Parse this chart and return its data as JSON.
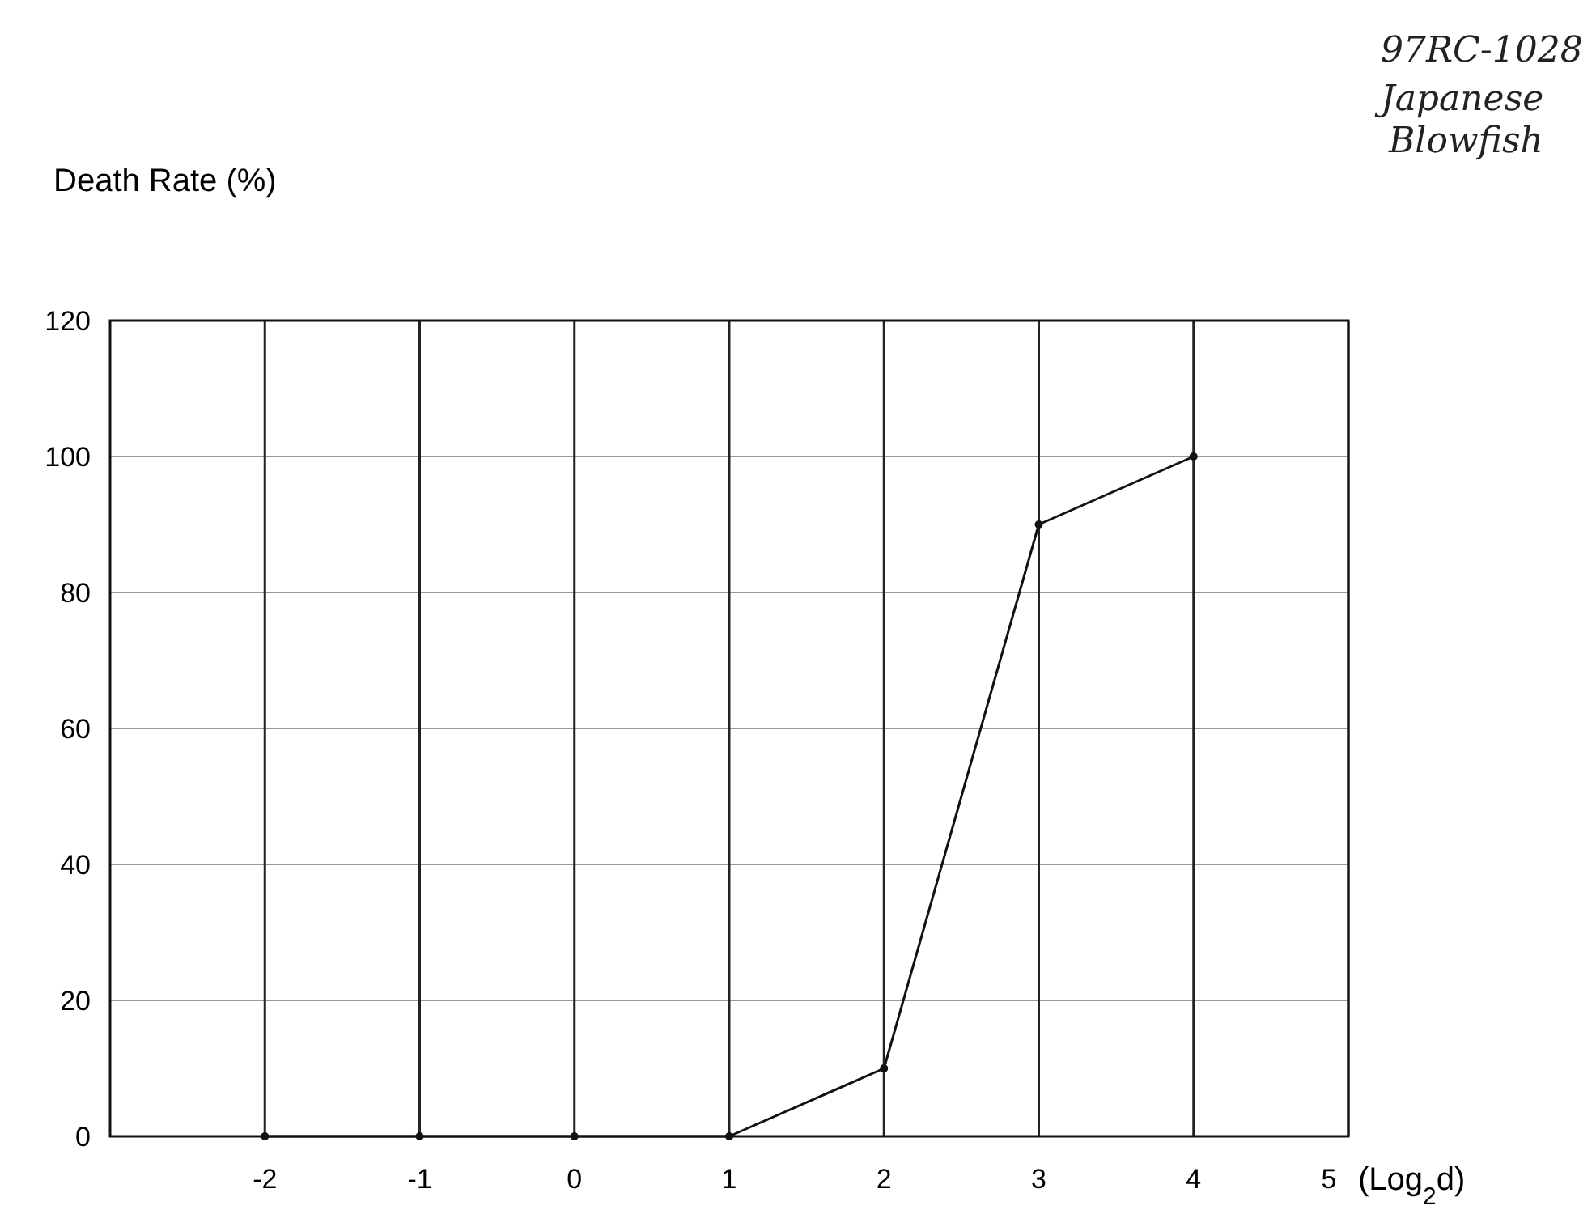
{
  "chart_data": {
    "type": "line",
    "ylabel": "Death Rate (%)",
    "xlabel": "(Log$_{2}$d)",
    "annotations": [
      "97RC-1028",
      "Japanese Blowfish"
    ],
    "x": [
      -2,
      -1,
      0,
      1,
      2,
      3,
      4
    ],
    "series": [
      {
        "color": "#111111",
        "values": [
          0,
          0,
          0,
          0,
          10,
          90,
          100
        ]
      }
    ],
    "xlim": [
      -3,
      5
    ],
    "xticks": [
      -2,
      -1,
      0,
      1,
      2,
      3,
      4,
      5
    ],
    "ylim": [
      0,
      120
    ],
    "yticks": [
      0,
      20,
      40,
      60,
      80,
      100,
      120
    ],
    "grid": true,
    "marker": "circle",
    "line_style": "solid"
  }
}
